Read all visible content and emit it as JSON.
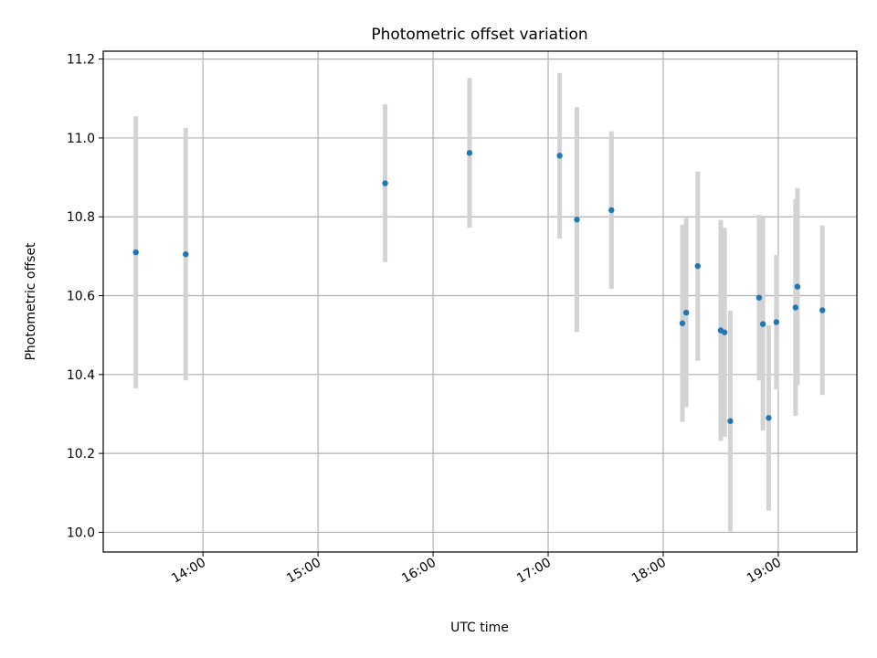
{
  "chart_data": {
    "type": "scatter",
    "title": "Photometric offset variation",
    "xlabel": "UTC time",
    "ylabel": "Photometric offset",
    "xlim": [
      "13:08",
      "19:41"
    ],
    "ylim": [
      9.95,
      11.22
    ],
    "xticks": [
      "14:00",
      "15:00",
      "16:00",
      "17:00",
      "18:00",
      "19:00"
    ],
    "yticks": [
      "10.0",
      "10.2",
      "10.4",
      "10.6",
      "10.8",
      "11.0",
      "11.2"
    ],
    "grid": true,
    "colors": {
      "point": "#1f77b4",
      "errorbar": "#d3d3d3"
    },
    "series": [
      {
        "points": [
          {
            "x": "13:25",
            "y": 10.71,
            "yerr": 0.345
          },
          {
            "x": "13:51",
            "y": 10.705,
            "yerr": 0.32
          },
          {
            "x": "15:35",
            "y": 10.885,
            "yerr": 0.2
          },
          {
            "x": "16:19",
            "y": 10.962,
            "yerr": 0.19
          },
          {
            "x": "17:06",
            "y": 10.955,
            "yerr": 0.21
          },
          {
            "x": "17:15",
            "y": 10.793,
            "yerr": 0.285
          },
          {
            "x": "17:33",
            "y": 10.817,
            "yerr": 0.2
          },
          {
            "x": "18:10",
            "y": 10.53,
            "yerr": 0.25
          },
          {
            "x": "18:12",
            "y": 10.557,
            "yerr": 0.24
          },
          {
            "x": "18:18",
            "y": 10.675,
            "yerr": 0.24
          },
          {
            "x": "18:30",
            "y": 10.512,
            "yerr": 0.28
          },
          {
            "x": "18:32",
            "y": 10.507,
            "yerr": 0.265
          },
          {
            "x": "18:35",
            "y": 10.282,
            "yerr": 0.28
          },
          {
            "x": "18:50",
            "y": 10.595,
            "yerr": 0.21
          },
          {
            "x": "18:52",
            "y": 10.528,
            "yerr": 0.27
          },
          {
            "x": "18:55",
            "y": 10.29,
            "yerr": 0.235
          },
          {
            "x": "18:59",
            "y": 10.533,
            "yerr": 0.17
          },
          {
            "x": "19:09",
            "y": 10.57,
            "yerr": 0.275
          },
          {
            "x": "19:10",
            "y": 10.623,
            "yerr": 0.25
          },
          {
            "x": "19:23",
            "y": 10.563,
            "yerr": 0.215
          }
        ]
      }
    ]
  }
}
